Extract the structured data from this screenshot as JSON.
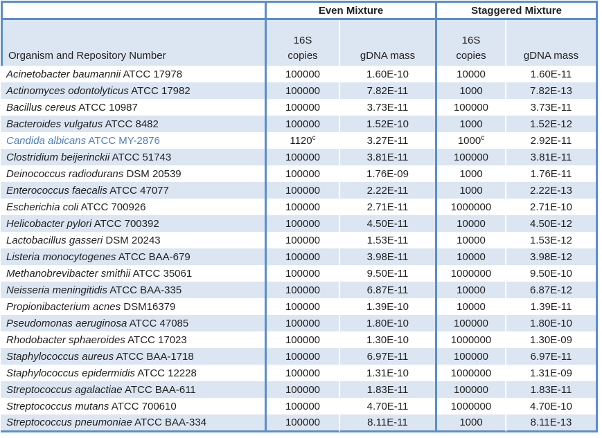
{
  "colors": {
    "border_blue": "#5b8ec9",
    "row_fill": "#dce6f2",
    "highlight_text": "#4f81bd",
    "text": "#1f1f1f"
  },
  "table": {
    "organism_header": "Organism and Repository Number",
    "group_headers": [
      {
        "label": "Even Mixture"
      },
      {
        "label": "Staggered Mixture"
      }
    ],
    "sub": {
      "copies_line1": "16S",
      "copies_line2": "copies",
      "gdna": "gDNA mass"
    },
    "rows": [
      {
        "name": "Acinetobacter baumannii",
        "id": "ATCC 17978",
        "even_copies": "100000",
        "even_sup": "",
        "even_gdna": "1.60E-10",
        "stag_copies": "10000",
        "stag_sup": "",
        "stag_gdna": "1.60E-11",
        "highlight": false
      },
      {
        "name": "Actinomyces odontolyticus",
        "id": "ATCC 17982",
        "even_copies": "100000",
        "even_sup": "",
        "even_gdna": "7.82E-11",
        "stag_copies": "1000",
        "stag_sup": "",
        "stag_gdna": "7.82E-13",
        "highlight": false
      },
      {
        "name": "Bacillus cereus",
        "id": "ATCC 10987",
        "even_copies": "100000",
        "even_sup": "",
        "even_gdna": "3.73E-11",
        "stag_copies": "100000",
        "stag_sup": "",
        "stag_gdna": "3.73E-11",
        "highlight": false
      },
      {
        "name": "Bacteroides vulgatus",
        "id": "ATCC 8482",
        "even_copies": "100000",
        "even_sup": "",
        "even_gdna": "1.52E-10",
        "stag_copies": "1000",
        "stag_sup": "",
        "stag_gdna": "1.52E-12",
        "highlight": false
      },
      {
        "name": "Candida albicans",
        "id": "ATCC MY-2876",
        "even_copies": "1120",
        "even_sup": "c",
        "even_gdna": "3.27E-11",
        "stag_copies": "1000",
        "stag_sup": "c",
        "stag_gdna": "2.92E-11",
        "highlight": true
      },
      {
        "name": "Clostridium beijerinckii",
        "id": "ATCC 51743",
        "even_copies": "100000",
        "even_sup": "",
        "even_gdna": "3.81E-11",
        "stag_copies": "100000",
        "stag_sup": "",
        "stag_gdna": "3.81E-11",
        "highlight": false
      },
      {
        "name": "Deinococcus radiodurans",
        "id": "DSM 20539",
        "even_copies": "100000",
        "even_sup": "",
        "even_gdna": "1.76E-09",
        "stag_copies": "1000",
        "stag_sup": "",
        "stag_gdna": "1.76E-11",
        "highlight": false
      },
      {
        "name": "Enterococcus faecalis",
        "id": "ATCC 47077",
        "even_copies": "100000",
        "even_sup": "",
        "even_gdna": "2.22E-11",
        "stag_copies": "1000",
        "stag_sup": "",
        "stag_gdna": "2.22E-13",
        "highlight": false
      },
      {
        "name": "Escherichia coli",
        "id": "ATCC 700926",
        "even_copies": "100000",
        "even_sup": "",
        "even_gdna": "2.71E-11",
        "stag_copies": "1000000",
        "stag_sup": "",
        "stag_gdna": "2.71E-10",
        "highlight": false
      },
      {
        "name": "Helicobacter pylori",
        "id": "ATCC 700392",
        "even_copies": "100000",
        "even_sup": "",
        "even_gdna": "4.50E-11",
        "stag_copies": "10000",
        "stag_sup": "",
        "stag_gdna": "4.50E-12",
        "highlight": false
      },
      {
        "name": "Lactobacillus gasseri",
        "id": "DSM 20243",
        "even_copies": "100000",
        "even_sup": "",
        "even_gdna": "1.53E-11",
        "stag_copies": "10000",
        "stag_sup": "",
        "stag_gdna": "1.53E-12",
        "highlight": false
      },
      {
        "name": "Listeria monocytogenes",
        "id": "ATCC BAA-679",
        "even_copies": "100000",
        "even_sup": "",
        "even_gdna": "3.98E-11",
        "stag_copies": "10000",
        "stag_sup": "",
        "stag_gdna": "3.98E-12",
        "highlight": false
      },
      {
        "name": "Methanobrevibacter smithii",
        "id": "ATCC 35061",
        "even_copies": "100000",
        "even_sup": "",
        "even_gdna": "9.50E-11",
        "stag_copies": "1000000",
        "stag_sup": "",
        "stag_gdna": "9.50E-10",
        "highlight": false
      },
      {
        "name": "Neisseria meningitidis",
        "id": "ATCC BAA-335",
        "even_copies": "100000",
        "even_sup": "",
        "even_gdna": "6.87E-11",
        "stag_copies": "10000",
        "stag_sup": "",
        "stag_gdna": "6.87E-12",
        "highlight": false
      },
      {
        "name": "Propionibacterium acnes",
        "id": "DSM16379",
        "even_copies": "100000",
        "even_sup": "",
        "even_gdna": "1.39E-10",
        "stag_copies": "10000",
        "stag_sup": "",
        "stag_gdna": "1.39E-11",
        "highlight": false
      },
      {
        "name": "Pseudomonas aeruginosa",
        "id": "ATCC 47085",
        "even_copies": "100000",
        "even_sup": "",
        "even_gdna": "1.80E-10",
        "stag_copies": "100000",
        "stag_sup": "",
        "stag_gdna": "1.80E-10",
        "highlight": false
      },
      {
        "name": "Rhodobacter sphaeroides",
        "id": "ATCC 17023",
        "even_copies": "100000",
        "even_sup": "",
        "even_gdna": "1.30E-10",
        "stag_copies": "1000000",
        "stag_sup": "",
        "stag_gdna": "1.30E-09",
        "highlight": false
      },
      {
        "name": "Staphylococcus aureus",
        "id": "ATCC BAA-1718",
        "even_copies": "100000",
        "even_sup": "",
        "even_gdna": "6.97E-11",
        "stag_copies": "100000",
        "stag_sup": "",
        "stag_gdna": "6.97E-11",
        "highlight": false
      },
      {
        "name": "Staphylococcus epidermidis",
        "id": "ATCC 12228",
        "even_copies": "100000",
        "even_sup": "",
        "even_gdna": "1.31E-10",
        "stag_copies": "1000000",
        "stag_sup": "",
        "stag_gdna": "1.31E-09",
        "highlight": false
      },
      {
        "name": "Streptococcus agalactiae",
        "id": "ATCC BAA-611",
        "even_copies": "100000",
        "even_sup": "",
        "even_gdna": "1.83E-11",
        "stag_copies": "100000",
        "stag_sup": "",
        "stag_gdna": "1.83E-11",
        "highlight": false
      },
      {
        "name": "Streptococcus mutans",
        "id": "ATCC 700610",
        "even_copies": "100000",
        "even_sup": "",
        "even_gdna": "4.70E-11",
        "stag_copies": "1000000",
        "stag_sup": "",
        "stag_gdna": "4.70E-10",
        "highlight": false
      },
      {
        "name": "Streptococcus pneumoniae",
        "id": "ATCC BAA-334",
        "even_copies": "100000",
        "even_sup": "",
        "even_gdna": "8.11E-11",
        "stag_copies": "1000",
        "stag_sup": "",
        "stag_gdna": "8.11E-13",
        "highlight": false
      }
    ]
  }
}
